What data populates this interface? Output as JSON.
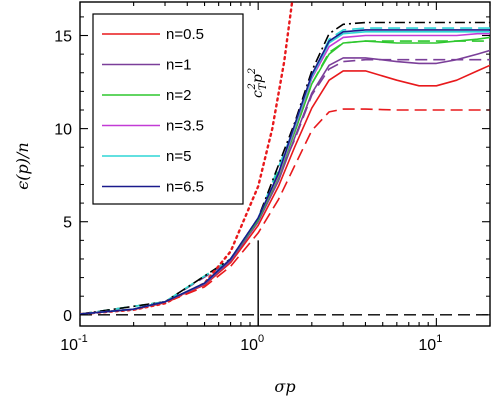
{
  "chart_data": {
    "type": "line",
    "xscale": "log",
    "xlim": [
      0.1,
      20
    ],
    "ylim": [
      -0.6,
      16.8
    ],
    "xlabel": "σp",
    "ylabel": "ϵ(p)/n",
    "x_ticks": [
      {
        "value": 0.1,
        "base": "10",
        "exp": "-1"
      },
      {
        "value": 1,
        "base": "10",
        "exp": "0"
      },
      {
        "value": 10,
        "base": "10",
        "exp": "1"
      }
    ],
    "y_ticks": [
      0,
      5,
      10,
      15
    ],
    "legend_position": "top-left",
    "annotation": {
      "text": "c",
      "sub": "T",
      "sup": "2",
      "tail": "p",
      "tail_sup": "2",
      "at": [
        1.15,
        12.0
      ]
    },
    "reference_lines": [
      {
        "name": "zero",
        "style": "dashed",
        "color": "#000000",
        "y": 0
      },
      {
        "name": "vertical",
        "style": "solid",
        "color": "#000000",
        "x": 1.0,
        "y": [
          -0.6,
          4.0
        ]
      }
    ],
    "series": [
      {
        "name": "n=0.5",
        "color": "#e8191c",
        "style": "solid",
        "x": [
          0.1,
          0.2,
          0.3,
          0.5,
          0.7,
          1.0,
          1.3,
          1.6,
          2.0,
          2.5,
          3.0,
          4.0,
          6.0,
          8.0,
          10.0,
          13.0,
          17.0,
          20.0
        ],
        "y": [
          0.04,
          0.3,
          0.7,
          1.6,
          2.8,
          4.8,
          6.9,
          9.0,
          11.1,
          12.6,
          13.1,
          13.1,
          12.6,
          12.3,
          12.3,
          12.6,
          13.1,
          13.4
        ]
      },
      {
        "name": "n=1",
        "color": "#7b3f99",
        "style": "solid",
        "x": [
          0.1,
          0.2,
          0.3,
          0.5,
          0.7,
          1.0,
          1.3,
          1.6,
          2.0,
          2.5,
          3.0,
          4.0,
          6.0,
          8.0,
          10.0,
          13.0,
          17.0,
          20.0
        ],
        "y": [
          0.04,
          0.3,
          0.7,
          1.65,
          2.9,
          5.0,
          7.2,
          9.5,
          11.9,
          13.4,
          13.8,
          13.8,
          13.6,
          13.5,
          13.5,
          13.7,
          14.0,
          14.2
        ]
      },
      {
        "name": "n=2",
        "color": "#2ec72e",
        "style": "solid",
        "x": [
          0.1,
          0.2,
          0.3,
          0.5,
          0.7,
          1.0,
          1.3,
          1.6,
          2.0,
          2.5,
          3.0,
          4.0,
          6.0,
          8.0,
          10.0,
          13.0,
          17.0,
          20.0
        ],
        "y": [
          0.04,
          0.3,
          0.7,
          1.7,
          3.0,
          5.1,
          7.4,
          9.8,
          12.4,
          14.0,
          14.6,
          14.7,
          14.6,
          14.6,
          14.6,
          14.7,
          14.8,
          14.9
        ]
      },
      {
        "name": "n=3.5",
        "color": "#c23bd6",
        "style": "solid",
        "x": [
          0.1,
          0.2,
          0.3,
          0.5,
          0.7,
          1.0,
          1.3,
          1.6,
          2.0,
          2.5,
          3.0,
          4.0,
          6.0,
          8.0,
          10.0,
          13.0,
          17.0,
          20.0
        ],
        "y": [
          0.04,
          0.3,
          0.7,
          1.7,
          3.0,
          5.2,
          7.5,
          10.0,
          12.7,
          14.4,
          14.9,
          15.0,
          15.0,
          15.0,
          15.0,
          15.0,
          15.1,
          15.1
        ]
      },
      {
        "name": "n=5",
        "color": "#2fd6d6",
        "style": "solid",
        "x": [
          0.1,
          0.2,
          0.3,
          0.5,
          0.7,
          1.0,
          1.3,
          1.6,
          2.0,
          2.5,
          3.0,
          4.0,
          6.0,
          8.0,
          10.0,
          13.0,
          17.0,
          20.0
        ],
        "y": [
          0.04,
          0.3,
          0.7,
          1.7,
          3.0,
          5.2,
          7.6,
          10.1,
          12.8,
          14.6,
          15.1,
          15.2,
          15.2,
          15.2,
          15.2,
          15.2,
          15.2,
          15.2
        ]
      },
      {
        "name": "n=6.5",
        "color": "#1a1a8c",
        "style": "solid",
        "x": [
          0.1,
          0.2,
          0.3,
          0.5,
          0.7,
          1.0,
          1.3,
          1.6,
          2.0,
          2.5,
          3.0,
          4.0,
          6.0,
          8.0,
          10.0,
          13.0,
          17.0,
          20.0
        ],
        "y": [
          0.04,
          0.3,
          0.7,
          1.7,
          3.0,
          5.2,
          7.6,
          10.2,
          12.9,
          14.7,
          15.2,
          15.3,
          15.3,
          15.3,
          15.3,
          15.3,
          15.3,
          15.3
        ]
      },
      {
        "color": "#e8191c",
        "style": "dashed",
        "x": [
          0.1,
          0.2,
          0.3,
          0.5,
          0.7,
          1.0,
          1.3,
          1.6,
          2.0,
          2.5,
          3.0,
          4.0,
          6.0,
          10.0,
          20.0
        ],
        "y": [
          0.04,
          0.28,
          0.65,
          1.5,
          2.6,
          4.4,
          6.2,
          8.0,
          9.9,
          10.9,
          11.05,
          11.05,
          11.0,
          11.0,
          11.0
        ]
      },
      {
        "color": "#7b3f99",
        "style": "dashed",
        "x": [
          0.1,
          0.3,
          0.7,
          1.0,
          1.6,
          2.0,
          2.5,
          3.0,
          4.0,
          10.0,
          20.0
        ],
        "y": [
          0.04,
          0.7,
          2.9,
          5.0,
          9.4,
          11.8,
          13.2,
          13.6,
          13.7,
          13.7,
          13.7
        ]
      },
      {
        "color": "#2ec72e",
        "style": "dashed",
        "x": [
          0.1,
          0.3,
          0.7,
          1.0,
          1.6,
          2.0,
          2.5,
          3.0,
          4.0,
          10.0,
          20.0
        ],
        "y": [
          0.04,
          0.7,
          3.0,
          5.1,
          9.8,
          12.4,
          14.1,
          14.6,
          14.7,
          14.7,
          14.7
        ]
      },
      {
        "color": "#2fd6d6",
        "style": "dashed",
        "x": [
          0.1,
          0.3,
          0.7,
          1.0,
          1.6,
          2.0,
          2.5,
          3.0,
          4.0,
          10.0,
          20.0
        ],
        "y": [
          0.04,
          0.7,
          3.0,
          5.2,
          10.1,
          12.8,
          14.8,
          15.3,
          15.4,
          15.4,
          15.4
        ]
      },
      {
        "color": "#000000",
        "style": "dashdot",
        "x": [
          0.1,
          0.3,
          0.7,
          1.0,
          1.6,
          2.0,
          2.5,
          3.0,
          4.0,
          10.0,
          20.0
        ],
        "y": [
          0.04,
          0.7,
          3.0,
          5.2,
          10.3,
          13.1,
          15.1,
          15.6,
          15.7,
          15.7,
          15.7
        ]
      },
      {
        "color": "#e8191c",
        "style": "dotted",
        "x": [
          0.1,
          0.2,
          0.3,
          0.5,
          0.7,
          1.0,
          1.2,
          1.4,
          1.55
        ],
        "y": [
          0.04,
          0.27,
          0.62,
          1.7,
          3.4,
          6.9,
          10.0,
          13.6,
          16.8
        ]
      }
    ]
  }
}
